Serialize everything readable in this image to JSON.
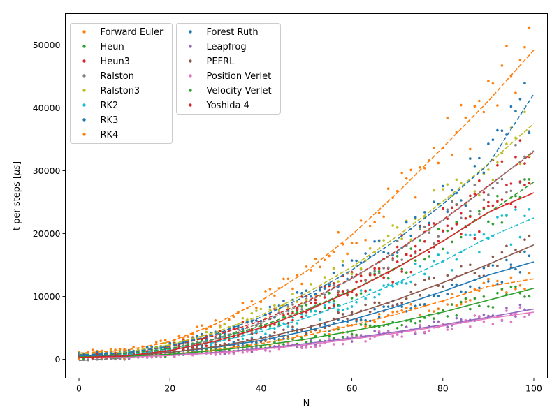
{
  "chart_data": {
    "type": "scatter",
    "xlabel": "N",
    "ylabel_prefix": "t per steps [",
    "ylabel_unit": "μs",
    "ylabel_suffix": "]",
    "xlim": [
      -3,
      103
    ],
    "ylim": [
      -3000,
      55000
    ],
    "xticks": [
      0,
      20,
      40,
      60,
      80,
      100
    ],
    "yticks": [
      0,
      10000,
      20000,
      30000,
      40000,
      50000
    ],
    "xtick_labels": [
      "0",
      "20",
      "40",
      "60",
      "80",
      "100"
    ],
    "ytick_labels": [
      "0",
      "10000",
      "20000",
      "30000",
      "40000",
      "50000"
    ],
    "grid": false,
    "legend_location": "upper-left",
    "fit": "quadratic",
    "x": [
      0,
      10,
      20,
      30,
      40,
      50,
      60,
      70,
      80,
      90,
      100
    ],
    "series": [
      {
        "name": "Forward Euler",
        "color": "#ff7f0e",
        "line_style": "dashed",
        "fit": [
          1000,
          1400,
          2800,
          5600,
          9300,
          14000,
          19800,
          26500,
          33700,
          41100,
          49200
        ]
      },
      {
        "name": "Heun",
        "color": "#2ca02c",
        "line_style": "dashed",
        "fit": [
          600,
          850,
          1700,
          3200,
          5300,
          7900,
          11000,
          14700,
          18800,
          23300,
          28200
        ]
      },
      {
        "name": "Heun3",
        "color": "#d62728",
        "line_style": "dashed",
        "fit": [
          700,
          1000,
          2000,
          3800,
          6100,
          9200,
          12900,
          17300,
          22200,
          27600,
          33000
        ]
      },
      {
        "name": "Ralston",
        "color": "#7f7f7f",
        "line_style": "dashed",
        "fit": [
          -200,
          200,
          1300,
          3200,
          5800,
          9000,
          12800,
          17200,
          22100,
          27500,
          33200
        ]
      },
      {
        "name": "Ralston3",
        "color": "#bcbd22",
        "line_style": "dashed",
        "fit": [
          800,
          1100,
          2300,
          4300,
          7000,
          10500,
          14700,
          19600,
          25100,
          31100,
          37500
        ]
      },
      {
        "name": "RK2",
        "color": "#17becf",
        "line_style": "dashed",
        "fit": [
          500,
          700,
          1500,
          2700,
          4400,
          6600,
          9200,
          12200,
          15600,
          19400,
          22500
        ]
      },
      {
        "name": "RK3",
        "color": "#1f77b4",
        "line_style": "dashed",
        "fit": [
          700,
          1000,
          2100,
          4000,
          6700,
          10100,
          14200,
          19100,
          24700,
          31000,
          42200
        ]
      },
      {
        "name": "RK4",
        "color": "#ff7f0e",
        "line_style": "dashed",
        "fit": [
          300,
          400,
          800,
          1500,
          2500,
          3800,
          5400,
          7200,
          9300,
          11600,
          12800
        ]
      },
      {
        "name": "Forest Ruth",
        "color": "#1f77b4",
        "line_style": "solid",
        "fit": [
          500,
          600,
          1100,
          1900,
          3000,
          4500,
          6300,
          8400,
          10800,
          13400,
          15500
        ]
      },
      {
        "name": "Leapfrog",
        "color": "#9467bd",
        "line_style": "solid",
        "fit": [
          300,
          350,
          650,
          1100,
          1700,
          2500,
          3400,
          4400,
          5500,
          6700,
          8000
        ]
      },
      {
        "name": "PEFRL",
        "color": "#8c564b",
        "line_style": "solid",
        "fit": [
          400,
          500,
          1100,
          2000,
          3300,
          5000,
          7100,
          9500,
          12200,
          15100,
          18200
        ]
      },
      {
        "name": "Position Verlet",
        "color": "#e377c2",
        "line_style": "solid",
        "fit": [
          300,
          350,
          600,
          1000,
          1600,
          2300,
          3200,
          4200,
          5300,
          6500,
          7500
        ]
      },
      {
        "name": "Velocity Verlet",
        "color": "#2ca02c",
        "line_style": "solid",
        "fit": [
          400,
          450,
          800,
          1400,
          2200,
          3200,
          4500,
          5900,
          7500,
          9400,
          11300
        ]
      },
      {
        "name": "Yoshida 4",
        "color": "#d62728",
        "line_style": "solid",
        "fit": [
          300,
          500,
          1400,
          2900,
          5000,
          7700,
          10900,
          14600,
          18800,
          23400,
          26500
        ]
      }
    ]
  }
}
